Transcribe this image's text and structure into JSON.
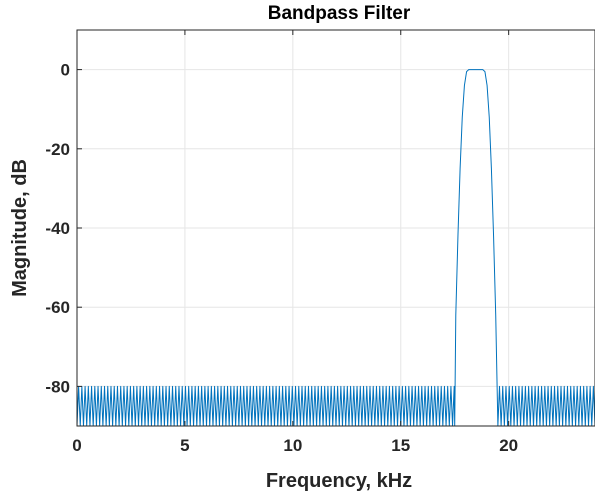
{
  "chart_data": {
    "type": "line",
    "title": "Bandpass Filter",
    "xlabel": "Frequency, kHz",
    "ylabel": "Magnitude, dB",
    "xlim": [
      0,
      24
    ],
    "ylim": [
      -90,
      10
    ],
    "x_ticks": [
      "0",
      "5",
      "10",
      "15",
      "20"
    ],
    "y_ticks": [
      "0",
      "-20",
      "-40",
      "-60",
      "-80"
    ],
    "grid": true,
    "legend": "none",
    "series_color": "#0072BD",
    "stopband_floor_db": -90,
    "stopband_ripple_peak_db": -80,
    "lower_stopband_end_khz": 17.5,
    "upper_stopband_start_khz": 19.5,
    "passband_edges_khz": [
      18.1,
      18.9
    ],
    "passband_gain_db": 0,
    "transition_points": [
      {
        "x": 17.5,
        "y": -90
      },
      {
        "x": 17.55,
        "y": -62
      },
      {
        "x": 17.65,
        "y": -42
      },
      {
        "x": 17.75,
        "y": -25
      },
      {
        "x": 17.85,
        "y": -12
      },
      {
        "x": 17.95,
        "y": -4
      },
      {
        "x": 18.05,
        "y": -0.5
      },
      {
        "x": 18.15,
        "y": 0
      },
      {
        "x": 18.5,
        "y": 0
      },
      {
        "x": 18.8,
        "y": 0
      },
      {
        "x": 18.9,
        "y": -0.5
      },
      {
        "x": 19.0,
        "y": -4
      },
      {
        "x": 19.1,
        "y": -12
      },
      {
        "x": 19.2,
        "y": -25
      },
      {
        "x": 19.3,
        "y": -42
      },
      {
        "x": 19.4,
        "y": -62
      },
      {
        "x": 19.5,
        "y": -90
      }
    ]
  }
}
